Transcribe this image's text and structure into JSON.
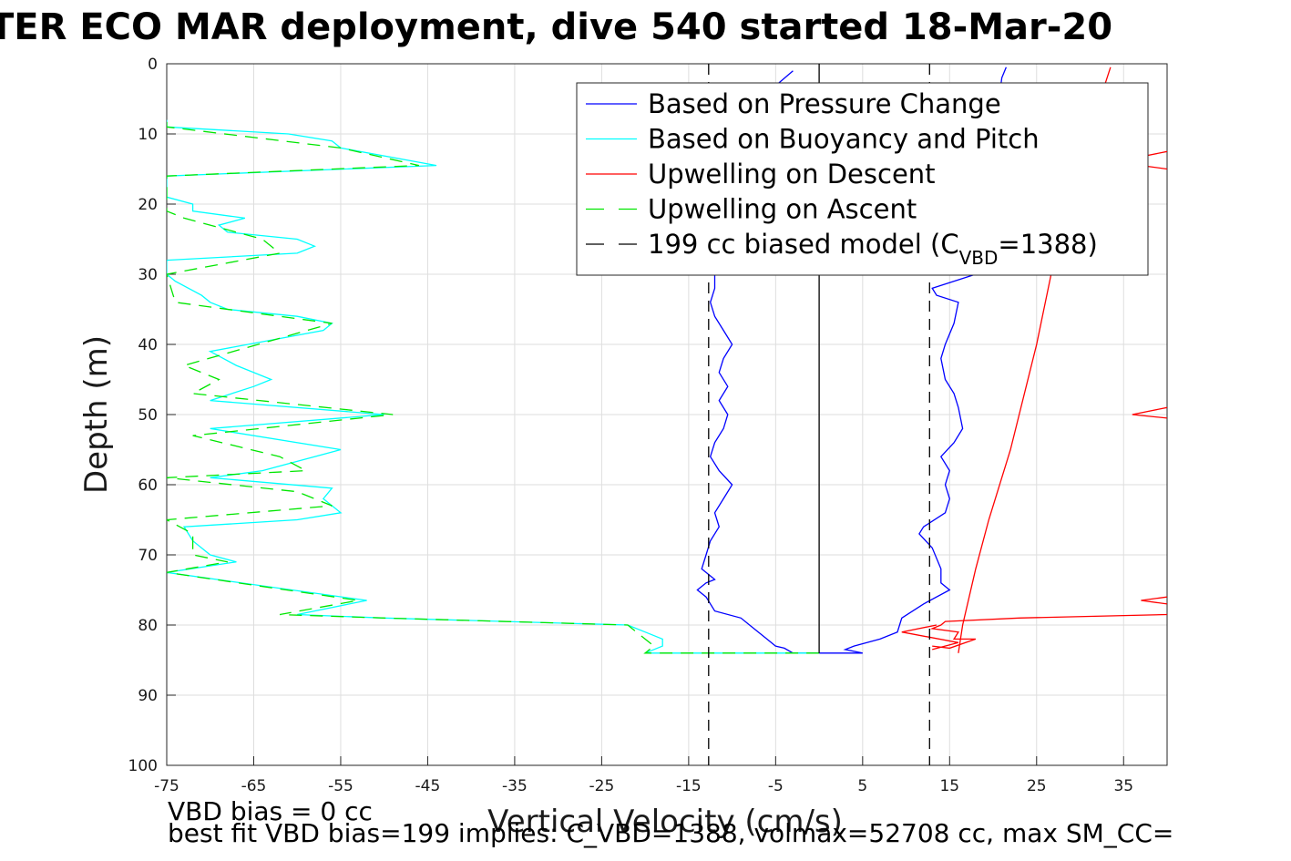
{
  "chart_data": {
    "type": "line",
    "title": "TER ECO MAR deployment, dive 540 started 18-Mar-20",
    "xlabel": "Vertical Velocity (cm/s)",
    "ylabel": "Depth (m)",
    "xlim": [
      -75,
      40
    ],
    "ylim": [
      0,
      100
    ],
    "y_reversed": true,
    "xticks": [
      -75,
      -65,
      -55,
      -45,
      -35,
      -25,
      -15,
      -5,
      5,
      15,
      25,
      35
    ],
    "yticks": [
      0,
      10,
      20,
      30,
      40,
      50,
      60,
      70,
      80,
      90,
      100
    ],
    "grid": true,
    "legend_position": "top-right",
    "legend": [
      {
        "label": "Based on Pressure Change",
        "color": "#0000ff",
        "dash": "solid"
      },
      {
        "label": "Based on Buoyancy and Pitch",
        "color": "#00ffff",
        "dash": "solid"
      },
      {
        "label": "Upwelling on Descent",
        "color": "#ff0000",
        "dash": "solid"
      },
      {
        "label": "Upwelling on Ascent",
        "color": "#00e600",
        "dash": "dashed"
      },
      {
        "label": "199 cc biased model (C",
        "sub": "VBD",
        "suffix": "=1388)",
        "color": "#000000",
        "dash": "dashed"
      }
    ],
    "series": [
      {
        "name": "Based on Pressure Change",
        "color": "#0000ff",
        "dash": "solid",
        "points": [
          [
            21.5,
            0.5
          ],
          [
            21,
            2
          ],
          [
            18,
            30
          ],
          [
            13,
            32
          ],
          [
            13.5,
            33
          ],
          [
            16,
            34
          ],
          [
            15.5,
            37
          ],
          [
            14.5,
            40
          ],
          [
            14,
            42
          ],
          [
            14.5,
            45
          ],
          [
            15.5,
            47
          ],
          [
            16,
            49
          ],
          [
            16.5,
            52
          ],
          [
            15.5,
            54
          ],
          [
            14,
            56
          ],
          [
            15,
            58
          ],
          [
            14.5,
            60
          ],
          [
            15,
            62
          ],
          [
            14.5,
            64
          ],
          [
            12,
            66
          ],
          [
            11.5,
            67
          ],
          [
            13,
            69
          ],
          [
            14,
            72
          ],
          [
            14,
            74
          ],
          [
            15,
            75
          ],
          [
            12,
            77
          ],
          [
            9.5,
            79
          ],
          [
            9,
            81
          ],
          [
            7,
            82
          ],
          [
            4,
            83
          ],
          [
            3,
            83.5
          ],
          [
            5,
            84
          ],
          [
            1,
            84
          ],
          [
            -3,
            84
          ],
          [
            -4,
            83.3
          ],
          [
            -5,
            83
          ],
          [
            -6,
            82
          ],
          [
            -7,
            81
          ],
          [
            -8,
            80
          ],
          [
            -9,
            79
          ],
          [
            -12,
            78
          ],
          [
            -13,
            76
          ],
          [
            -14,
            75
          ],
          [
            -13,
            74
          ],
          [
            -12,
            73.5
          ],
          [
            -13.5,
            72
          ],
          [
            -13,
            70
          ],
          [
            -12.5,
            68
          ],
          [
            -11.5,
            66
          ],
          [
            -12,
            64
          ],
          [
            -11,
            62
          ],
          [
            -10,
            60
          ],
          [
            -11.5,
            58
          ],
          [
            -12.5,
            56
          ],
          [
            -12,
            54
          ],
          [
            -11,
            52
          ],
          [
            -10.5,
            50
          ],
          [
            -11.5,
            48
          ],
          [
            -10.5,
            46
          ],
          [
            -11.5,
            44
          ],
          [
            -11,
            42
          ],
          [
            -10,
            40
          ],
          [
            -11,
            38
          ],
          [
            -12,
            36
          ],
          [
            -12.5,
            34
          ],
          [
            -12,
            32
          ],
          [
            -12,
            30
          ],
          [
            -11.5,
            20
          ],
          [
            -11.5,
            10
          ],
          [
            -3,
            1
          ]
        ]
      },
      {
        "name": "Based on Buoyancy and Pitch",
        "color": "#00ffff",
        "dash": "solid",
        "points": [
          [
            0,
            84
          ],
          [
            -20,
            84
          ],
          [
            -18,
            83
          ],
          [
            -18,
            82
          ],
          [
            -20,
            81
          ],
          [
            -22,
            80
          ],
          [
            -50,
            79
          ],
          [
            -60,
            78.5
          ],
          [
            -52,
            76.5
          ],
          [
            -75,
            72.5
          ],
          [
            -67,
            71
          ],
          [
            -70,
            70
          ],
          [
            -72,
            68
          ],
          [
            -73,
            66
          ],
          [
            -60,
            65
          ],
          [
            -55,
            64
          ],
          [
            -57,
            62
          ],
          [
            -56,
            60.5
          ],
          [
            -70,
            59
          ],
          [
            -64,
            58
          ],
          [
            -58,
            56
          ],
          [
            -55,
            55
          ],
          [
            -70,
            52
          ],
          [
            -50,
            50
          ],
          [
            -70,
            48
          ],
          [
            -65,
            46
          ],
          [
            -63,
            45
          ],
          [
            -67,
            43
          ],
          [
            -70,
            41
          ],
          [
            -57,
            38
          ],
          [
            -56,
            37
          ],
          [
            -60,
            36
          ],
          [
            -68,
            35
          ],
          [
            -70,
            34
          ],
          [
            -71,
            33
          ],
          [
            -74,
            31
          ],
          [
            -75,
            30
          ],
          [
            -75,
            28
          ],
          [
            -60,
            27
          ],
          [
            -58,
            26
          ],
          [
            -60,
            25
          ],
          [
            -68,
            24
          ],
          [
            -69,
            23
          ],
          [
            -66,
            22
          ],
          [
            -72,
            21
          ],
          [
            -72,
            20
          ],
          [
            -75,
            19
          ],
          [
            -75,
            16
          ],
          [
            -44,
            14.5
          ],
          [
            -55,
            12
          ],
          [
            -56,
            11
          ],
          [
            -61,
            10
          ],
          [
            -75,
            9
          ],
          [
            -75,
            8
          ]
        ]
      },
      {
        "name": "Upwelling on Ascent",
        "color": "#00e600",
        "dash": "dashed",
        "points": [
          [
            0,
            84
          ],
          [
            -20,
            84
          ],
          [
            -19,
            83
          ],
          [
            -20,
            82
          ],
          [
            -22,
            80
          ],
          [
            -50,
            79
          ],
          [
            -62,
            78.5
          ],
          [
            -53,
            76.5
          ],
          [
            -75,
            72.5
          ],
          [
            -68,
            71
          ],
          [
            -72,
            70
          ],
          [
            -72,
            67
          ],
          [
            -75,
            65
          ],
          [
            -56,
            63
          ],
          [
            -60,
            61
          ],
          [
            -75,
            59
          ],
          [
            -59,
            58
          ],
          [
            -62,
            56
          ],
          [
            -72,
            53
          ],
          [
            -49,
            50
          ],
          [
            -72,
            47
          ],
          [
            -69,
            45
          ],
          [
            -73,
            43
          ],
          [
            -56,
            37
          ],
          [
            -74,
            34
          ],
          [
            -75,
            30
          ],
          [
            -62,
            27
          ],
          [
            -64,
            25
          ],
          [
            -73,
            22
          ],
          [
            -75,
            21
          ],
          [
            -75,
            16
          ],
          [
            -46,
            14.5
          ],
          [
            -55,
            12
          ],
          [
            -75,
            9
          ],
          [
            -75,
            8
          ]
        ]
      },
      {
        "name": "Upwelling on Descent",
        "color": "#ff0000",
        "dash": "solid",
        "points": [
          [
            33.5,
            0.5
          ],
          [
            31,
            10
          ],
          [
            29,
            20
          ],
          [
            27,
            28
          ],
          [
            25,
            40
          ],
          [
            22,
            55
          ],
          [
            19.5,
            65
          ],
          [
            18,
            72
          ],
          [
            16.5,
            80
          ],
          [
            16,
            84
          ]
        ]
      },
      {
        "name": "Upwelling on Descent (ascent leg)",
        "color": "#ff0000",
        "dash": "solid",
        "points": [
          [
            13,
            83
          ],
          [
            15,
            83.3
          ],
          [
            18,
            82
          ],
          [
            15.5,
            82
          ],
          [
            16,
            81
          ],
          [
            13,
            80.5
          ],
          [
            14,
            80
          ],
          [
            14.5,
            79.5
          ],
          [
            23,
            79
          ],
          [
            40,
            78.5
          ]
        ]
      },
      {
        "name": "",
        "color": "#ff0000",
        "dash": "solid",
        "points": [
          [
            13,
            83.5
          ],
          [
            16,
            82.5
          ],
          [
            9.5,
            81
          ],
          [
            13.5,
            80
          ]
        ]
      },
      {
        "name": "",
        "color": "#ff0000",
        "dash": "solid",
        "points": [
          [
            40,
            12.5
          ],
          [
            34,
            14
          ],
          [
            40,
            15
          ]
        ]
      },
      {
        "name": "",
        "color": "#ff0000",
        "dash": "solid",
        "points": [
          [
            40,
            49
          ],
          [
            36,
            50
          ],
          [
            40,
            50.5
          ]
        ]
      },
      {
        "name": "",
        "color": "#ff0000",
        "dash": "solid",
        "points": [
          [
            40,
            76
          ],
          [
            37,
            76.5
          ],
          [
            40,
            77
          ]
        ]
      },
      {
        "name": "",
        "color": "#000000",
        "dash": "solid",
        "points": [
          [
            0,
            0
          ],
          [
            0,
            84
          ]
        ]
      },
      {
        "name": "",
        "color": "#000000",
        "dash": "dashed",
        "points": [
          [
            -12.7,
            0
          ],
          [
            -12.7,
            100
          ]
        ]
      },
      {
        "name": "",
        "color": "#000000",
        "dash": "dashed",
        "points": [
          [
            12.7,
            0
          ],
          [
            12.7,
            100
          ]
        ]
      }
    ]
  },
  "notes": {
    "line1": "VBD bias = 0 cc",
    "line2": "best fit VBD bias=199 implies: C_VBD=1388, volmax=52708 cc, max SM_CC="
  }
}
